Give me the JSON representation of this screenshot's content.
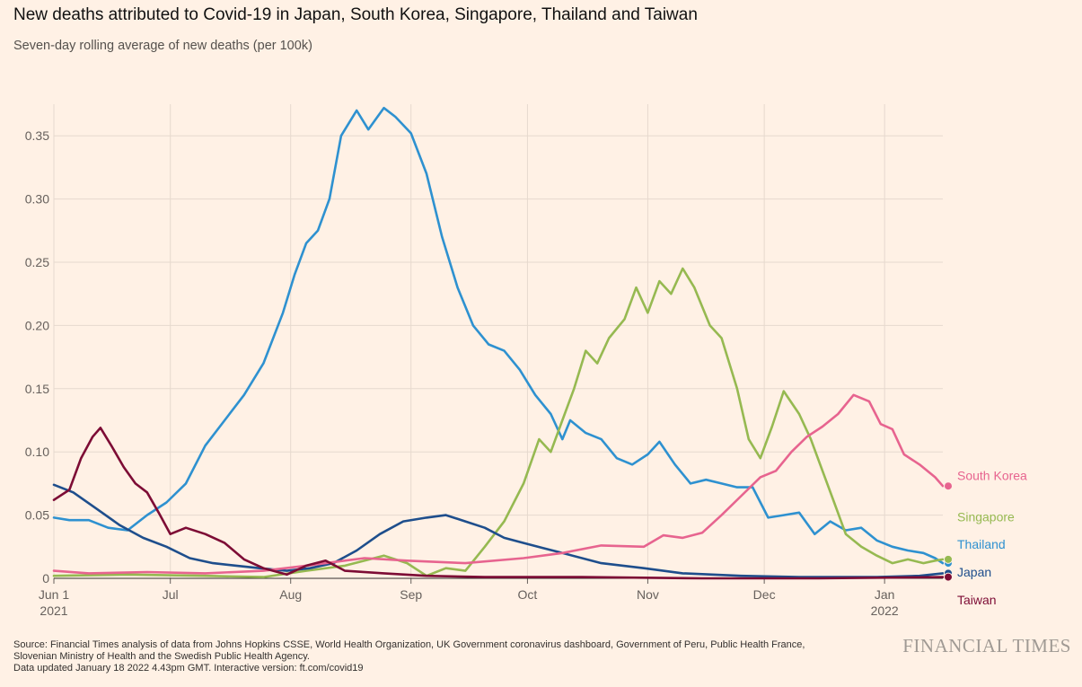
{
  "header": {
    "title": "New deaths attributed to Covid-19 in Japan, South Korea, Singapore, Thailand and Taiwan",
    "subtitle": "Seven-day rolling average of new deaths (per 100k)"
  },
  "footer": {
    "source_line1": "Source: Financial Times analysis of data from Johns Hopkins CSSE, World Health Organization, UK Government coronavirus dashboard, Government of Peru, Public Health France,",
    "source_line2": "Slovenian Ministry of Health and the Swedish Public Health Agency.",
    "updated": "Data updated January 18 2022 4.43pm GMT. Interactive version: ft.com/covid19",
    "brand": "FINANCIAL TIMES"
  },
  "chart_data": {
    "type": "line",
    "x_start": "2021-06-01",
    "x_end": "2022-01-16",
    "ylim": [
      0,
      0.375
    ],
    "y_ticks": [
      0,
      0.05,
      0.1,
      0.15,
      0.2,
      0.25,
      0.3,
      0.35
    ],
    "y_tick_labels": [
      "0",
      "0.05",
      "0.10",
      "0.15",
      "0.20",
      "0.25",
      "0.30",
      "0.35"
    ],
    "x_ticks": [
      {
        "date": "2021-06-01",
        "label": "Jun 1",
        "sublabel": "2021"
      },
      {
        "date": "2021-07-01",
        "label": "Jul",
        "sublabel": ""
      },
      {
        "date": "2021-08-01",
        "label": "Aug",
        "sublabel": ""
      },
      {
        "date": "2021-09-01",
        "label": "Sep",
        "sublabel": ""
      },
      {
        "date": "2021-10-01",
        "label": "Oct",
        "sublabel": ""
      },
      {
        "date": "2021-11-01",
        "label": "Nov",
        "sublabel": ""
      },
      {
        "date": "2021-12-01",
        "label": "Dec",
        "sublabel": ""
      },
      {
        "date": "2022-01-01",
        "label": "Jan",
        "sublabel": "2022"
      }
    ],
    "grid": true,
    "series": [
      {
        "name": "Thailand",
        "color": "#2e91d0",
        "points": [
          [
            "2021-06-01",
            0.048
          ],
          [
            "2021-06-05",
            0.046
          ],
          [
            "2021-06-10",
            0.046
          ],
          [
            "2021-06-15",
            0.04
          ],
          [
            "2021-06-20",
            0.038
          ],
          [
            "2021-06-25",
            0.05
          ],
          [
            "2021-06-30",
            0.06
          ],
          [
            "2021-07-05",
            0.075
          ],
          [
            "2021-07-10",
            0.105
          ],
          [
            "2021-07-15",
            0.125
          ],
          [
            "2021-07-20",
            0.145
          ],
          [
            "2021-07-25",
            0.17
          ],
          [
            "2021-07-30",
            0.21
          ],
          [
            "2021-08-02",
            0.24
          ],
          [
            "2021-08-05",
            0.265
          ],
          [
            "2021-08-08",
            0.275
          ],
          [
            "2021-08-11",
            0.3
          ],
          [
            "2021-08-14",
            0.35
          ],
          [
            "2021-08-18",
            0.37
          ],
          [
            "2021-08-21",
            0.355
          ],
          [
            "2021-08-25",
            0.372
          ],
          [
            "2021-08-28",
            0.365
          ],
          [
            "2021-09-01",
            0.352
          ],
          [
            "2021-09-05",
            0.32
          ],
          [
            "2021-09-09",
            0.27
          ],
          [
            "2021-09-13",
            0.23
          ],
          [
            "2021-09-17",
            0.2
          ],
          [
            "2021-09-21",
            0.185
          ],
          [
            "2021-09-25",
            0.18
          ],
          [
            "2021-09-29",
            0.165
          ],
          [
            "2021-10-03",
            0.145
          ],
          [
            "2021-10-07",
            0.13
          ],
          [
            "2021-10-10",
            0.11
          ],
          [
            "2021-10-12",
            0.125
          ],
          [
            "2021-10-16",
            0.115
          ],
          [
            "2021-10-20",
            0.11
          ],
          [
            "2021-10-24",
            0.095
          ],
          [
            "2021-10-28",
            0.09
          ],
          [
            "2021-11-01",
            0.098
          ],
          [
            "2021-11-04",
            0.108
          ],
          [
            "2021-11-08",
            0.09
          ],
          [
            "2021-11-12",
            0.075
          ],
          [
            "2021-11-16",
            0.078
          ],
          [
            "2021-11-20",
            0.075
          ],
          [
            "2021-11-24",
            0.072
          ],
          [
            "2021-11-28",
            0.072
          ],
          [
            "2021-12-02",
            0.048
          ],
          [
            "2021-12-06",
            0.05
          ],
          [
            "2021-12-10",
            0.052
          ],
          [
            "2021-12-14",
            0.035
          ],
          [
            "2021-12-18",
            0.045
          ],
          [
            "2021-12-22",
            0.038
          ],
          [
            "2021-12-26",
            0.04
          ],
          [
            "2021-12-30",
            0.03
          ],
          [
            "2022-01-03",
            0.025
          ],
          [
            "2022-01-07",
            0.022
          ],
          [
            "2022-01-11",
            0.02
          ],
          [
            "2022-01-14",
            0.016
          ],
          [
            "2022-01-16",
            0.012
          ]
        ]
      },
      {
        "name": "Singapore",
        "color": "#96b951",
        "points": [
          [
            "2021-06-01",
            0.002
          ],
          [
            "2021-06-20",
            0.003
          ],
          [
            "2021-07-10",
            0.002
          ],
          [
            "2021-07-25",
            0.001
          ],
          [
            "2021-08-05",
            0.006
          ],
          [
            "2021-08-15",
            0.01
          ],
          [
            "2021-08-25",
            0.018
          ],
          [
            "2021-08-31",
            0.012
          ],
          [
            "2021-09-05",
            0.002
          ],
          [
            "2021-09-10",
            0.008
          ],
          [
            "2021-09-15",
            0.006
          ],
          [
            "2021-09-20",
            0.025
          ],
          [
            "2021-09-25",
            0.045
          ],
          [
            "2021-09-30",
            0.075
          ],
          [
            "2021-10-04",
            0.11
          ],
          [
            "2021-10-07",
            0.1
          ],
          [
            "2021-10-10",
            0.125
          ],
          [
            "2021-10-13",
            0.15
          ],
          [
            "2021-10-16",
            0.18
          ],
          [
            "2021-10-19",
            0.17
          ],
          [
            "2021-10-22",
            0.19
          ],
          [
            "2021-10-26",
            0.205
          ],
          [
            "2021-10-29",
            0.23
          ],
          [
            "2021-11-01",
            0.21
          ],
          [
            "2021-11-04",
            0.235
          ],
          [
            "2021-11-07",
            0.225
          ],
          [
            "2021-11-10",
            0.245
          ],
          [
            "2021-11-13",
            0.23
          ],
          [
            "2021-11-17",
            0.2
          ],
          [
            "2021-11-20",
            0.19
          ],
          [
            "2021-11-24",
            0.15
          ],
          [
            "2021-11-27",
            0.11
          ],
          [
            "2021-11-30",
            0.095
          ],
          [
            "2021-12-03",
            0.12
          ],
          [
            "2021-12-06",
            0.148
          ],
          [
            "2021-12-10",
            0.13
          ],
          [
            "2021-12-13",
            0.11
          ],
          [
            "2021-12-16",
            0.085
          ],
          [
            "2021-12-19",
            0.06
          ],
          [
            "2021-12-22",
            0.035
          ],
          [
            "2021-12-26",
            0.025
          ],
          [
            "2021-12-30",
            0.018
          ],
          [
            "2022-01-03",
            0.012
          ],
          [
            "2022-01-07",
            0.015
          ],
          [
            "2022-01-11",
            0.012
          ],
          [
            "2022-01-14",
            0.014
          ],
          [
            "2022-01-16",
            0.015
          ]
        ]
      },
      {
        "name": "Japan",
        "color": "#1e4e8c",
        "points": [
          [
            "2021-06-01",
            0.074
          ],
          [
            "2021-06-06",
            0.068
          ],
          [
            "2021-06-12",
            0.055
          ],
          [
            "2021-06-18",
            0.042
          ],
          [
            "2021-06-24",
            0.032
          ],
          [
            "2021-06-30",
            0.025
          ],
          [
            "2021-07-06",
            0.016
          ],
          [
            "2021-07-12",
            0.012
          ],
          [
            "2021-07-18",
            0.01
          ],
          [
            "2021-07-24",
            0.008
          ],
          [
            "2021-07-31",
            0.006
          ],
          [
            "2021-08-06",
            0.008
          ],
          [
            "2021-08-12",
            0.012
          ],
          [
            "2021-08-18",
            0.022
          ],
          [
            "2021-08-24",
            0.035
          ],
          [
            "2021-08-30",
            0.045
          ],
          [
            "2021-09-05",
            0.048
          ],
          [
            "2021-09-10",
            0.05
          ],
          [
            "2021-09-15",
            0.045
          ],
          [
            "2021-09-20",
            0.04
          ],
          [
            "2021-09-25",
            0.032
          ],
          [
            "2021-09-30",
            0.028
          ],
          [
            "2021-10-05",
            0.024
          ],
          [
            "2021-10-10",
            0.02
          ],
          [
            "2021-10-20",
            0.012
          ],
          [
            "2021-10-31",
            0.008
          ],
          [
            "2021-11-10",
            0.004
          ],
          [
            "2021-11-25",
            0.002
          ],
          [
            "2021-12-10",
            0.001
          ],
          [
            "2021-12-30",
            0.001
          ],
          [
            "2022-01-10",
            0.002
          ],
          [
            "2022-01-16",
            0.004
          ]
        ]
      },
      {
        "name": "South Korea",
        "color": "#e7648f",
        "points": [
          [
            "2021-06-01",
            0.006
          ],
          [
            "2021-06-10",
            0.004
          ],
          [
            "2021-06-25",
            0.005
          ],
          [
            "2021-07-10",
            0.004
          ],
          [
            "2021-07-25",
            0.006
          ],
          [
            "2021-08-05",
            0.01
          ],
          [
            "2021-08-20",
            0.016
          ],
          [
            "2021-08-31",
            0.014
          ],
          [
            "2021-09-15",
            0.012
          ],
          [
            "2021-09-30",
            0.016
          ],
          [
            "2021-10-10",
            0.02
          ],
          [
            "2021-10-20",
            0.026
          ],
          [
            "2021-10-31",
            0.025
          ],
          [
            "2021-11-05",
            0.034
          ],
          [
            "2021-11-10",
            0.032
          ],
          [
            "2021-11-15",
            0.036
          ],
          [
            "2021-11-20",
            0.05
          ],
          [
            "2021-11-25",
            0.065
          ],
          [
            "2021-11-30",
            0.08
          ],
          [
            "2021-12-04",
            0.085
          ],
          [
            "2021-12-08",
            0.1
          ],
          [
            "2021-12-12",
            0.112
          ],
          [
            "2021-12-16",
            0.12
          ],
          [
            "2021-12-20",
            0.13
          ],
          [
            "2021-12-24",
            0.145
          ],
          [
            "2021-12-28",
            0.14
          ],
          [
            "2021-12-31",
            0.122
          ],
          [
            "2022-01-03",
            0.118
          ],
          [
            "2022-01-06",
            0.098
          ],
          [
            "2022-01-10",
            0.09
          ],
          [
            "2022-01-14",
            0.08
          ],
          [
            "2022-01-16",
            0.073
          ]
        ]
      },
      {
        "name": "Taiwan",
        "color": "#7d0c35",
        "points": [
          [
            "2021-06-01",
            0.062
          ],
          [
            "2021-06-05",
            0.07
          ],
          [
            "2021-06-08",
            0.095
          ],
          [
            "2021-06-11",
            0.112
          ],
          [
            "2021-06-13",
            0.119
          ],
          [
            "2021-06-16",
            0.104
          ],
          [
            "2021-06-19",
            0.088
          ],
          [
            "2021-06-22",
            0.075
          ],
          [
            "2021-06-25",
            0.068
          ],
          [
            "2021-06-28",
            0.052
          ],
          [
            "2021-07-01",
            0.035
          ],
          [
            "2021-07-05",
            0.04
          ],
          [
            "2021-07-10",
            0.035
          ],
          [
            "2021-07-15",
            0.028
          ],
          [
            "2021-07-20",
            0.015
          ],
          [
            "2021-07-25",
            0.008
          ],
          [
            "2021-07-31",
            0.003
          ],
          [
            "2021-08-05",
            0.01
          ],
          [
            "2021-08-10",
            0.014
          ],
          [
            "2021-08-15",
            0.006
          ],
          [
            "2021-08-25",
            0.004
          ],
          [
            "2021-09-05",
            0.002
          ],
          [
            "2021-09-20",
            0.001
          ],
          [
            "2021-10-15",
            0.001
          ],
          [
            "2021-11-15",
            0.0
          ],
          [
            "2021-12-15",
            0.0
          ],
          [
            "2022-01-16",
            0.001
          ]
        ]
      }
    ],
    "end_labels": [
      {
        "name": "South Korea",
        "color": "#e7648f"
      },
      {
        "name": "Singapore",
        "color": "#96b951"
      },
      {
        "name": "Thailand",
        "color": "#2e91d0"
      },
      {
        "name": "Japan",
        "color": "#1e4e8c"
      },
      {
        "name": "Taiwan",
        "color": "#7d0c35"
      }
    ]
  }
}
